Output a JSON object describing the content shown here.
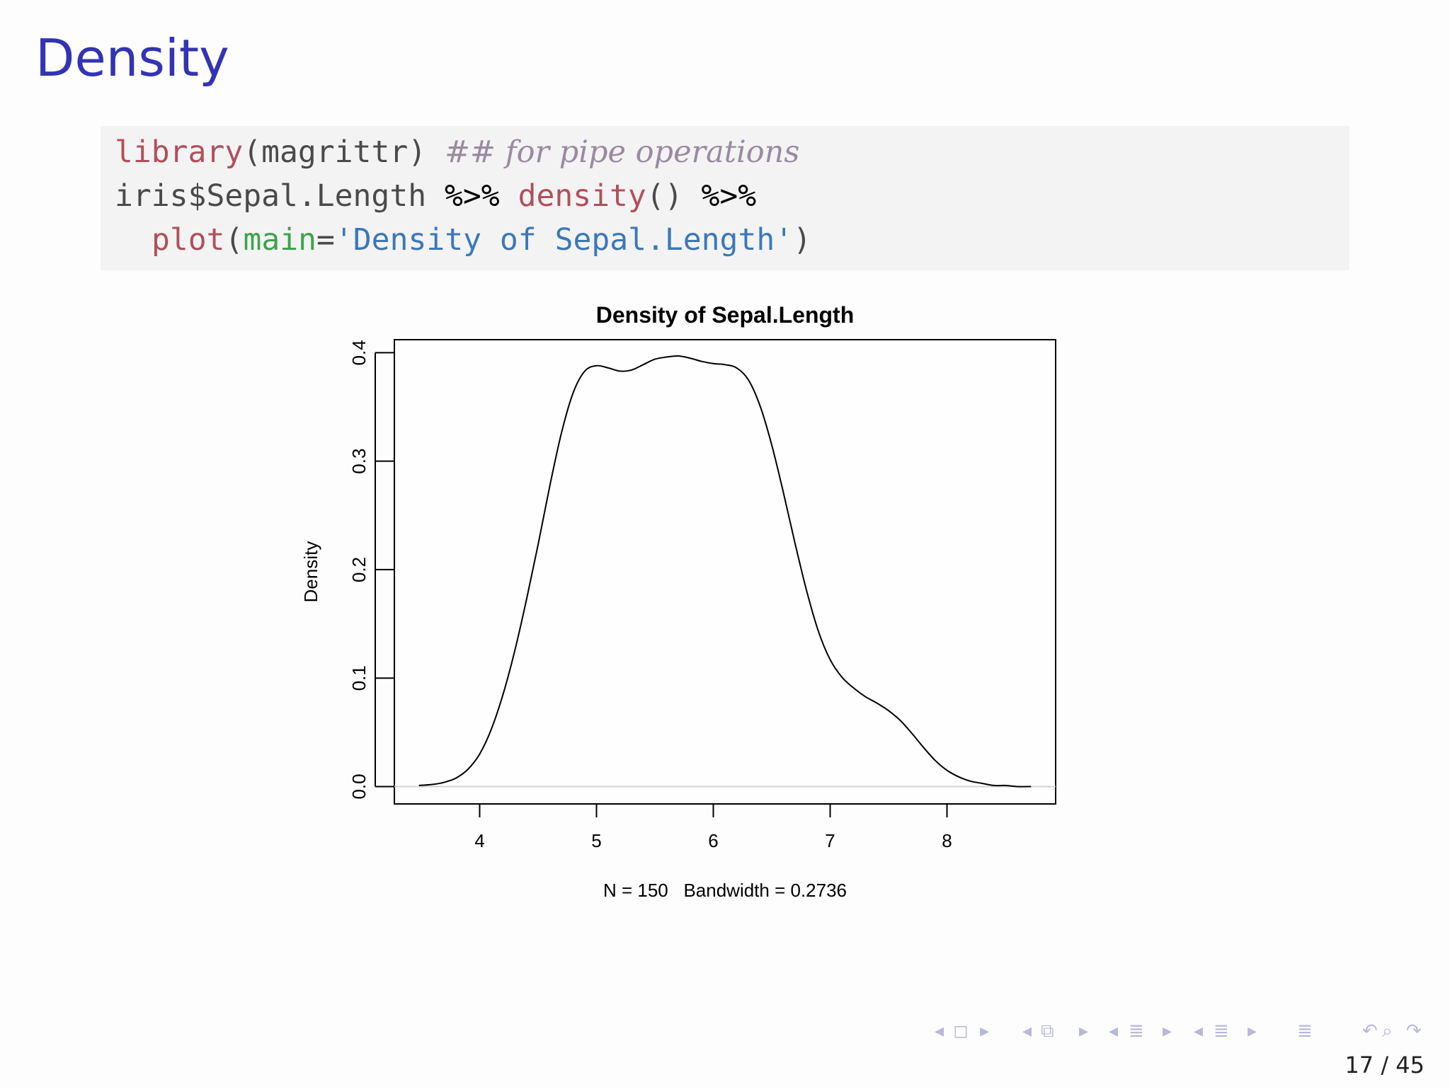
{
  "slide": {
    "title": "Density",
    "page_current": "17",
    "page_total": "45",
    "page_sep": "/"
  },
  "code": {
    "line1": {
      "fn": "library",
      "open": "(",
      "arg": "magrittr",
      "close": ")",
      "comment": "## for pipe operations"
    },
    "line2": {
      "obj": "iris$Sepal.Length",
      "pipe1": "%>%",
      "fn": "density",
      "parens": "()",
      "pipe2": "%>%"
    },
    "line3": {
      "fn": "plot",
      "open": "(",
      "arg": "main",
      "eq": "=",
      "str": "'Density of Sepal.Length'",
      "close": ")"
    }
  },
  "colors": {
    "title": "#3333b3",
    "code_fn": "#b0505a",
    "code_comment": "#9a8aa0",
    "code_arg": "#3fa34d",
    "code_string": "#3b78b8",
    "code_bg": "#f3f3f4"
  },
  "nav_icons": [
    "nav-left-arrow-icon",
    "frame-icon",
    "nav-right-arrow-icon",
    "nav-left-arrow-icon",
    "subsection-icon",
    "nav-right-arrow-icon",
    "nav-left-arrow-icon",
    "section-icon",
    "nav-right-arrow-icon",
    "nav-left-arrow-icon",
    "toc-icon",
    "nav-right-arrow-icon",
    "appendix-icon",
    "back-icon",
    "search-icon",
    "forward-icon"
  ],
  "chart_data": {
    "type": "line",
    "title": "Density of Sepal.Length",
    "xlabel": "N = 150   Bandwidth = 0.2736",
    "ylabel": "Density",
    "xlim": [
      3.27,
      8.93
    ],
    "ylim": [
      -0.016,
      0.412
    ],
    "xticks": [
      "4",
      "5",
      "6",
      "7",
      "8"
    ],
    "yticks": [
      "0.0",
      "0.1",
      "0.2",
      "0.3",
      "0.4"
    ],
    "grid": false,
    "baseline": 0,
    "series": [
      {
        "x": [
          3.48,
          3.6,
          3.7,
          3.8,
          3.9,
          4.0,
          4.1,
          4.2,
          4.3,
          4.4,
          4.5,
          4.6,
          4.7,
          4.8,
          4.9,
          5.0,
          5.1,
          5.2,
          5.3,
          5.4,
          5.5,
          5.6,
          5.7,
          5.8,
          5.9,
          6.0,
          6.1,
          6.2,
          6.3,
          6.4,
          6.5,
          6.6,
          6.7,
          6.8,
          6.9,
          7.0,
          7.1,
          7.2,
          7.3,
          7.4,
          7.5,
          7.6,
          7.7,
          7.8,
          7.9,
          8.0,
          8.1,
          8.2,
          8.3,
          8.4,
          8.5,
          8.6,
          8.72
        ],
        "y": [
          0.001,
          0.002,
          0.004,
          0.008,
          0.016,
          0.03,
          0.053,
          0.085,
          0.125,
          0.172,
          0.223,
          0.277,
          0.326,
          0.363,
          0.383,
          0.388,
          0.386,
          0.383,
          0.384,
          0.389,
          0.394,
          0.396,
          0.397,
          0.395,
          0.392,
          0.39,
          0.389,
          0.386,
          0.375,
          0.351,
          0.315,
          0.271,
          0.224,
          0.18,
          0.143,
          0.117,
          0.101,
          0.091,
          0.083,
          0.077,
          0.07,
          0.061,
          0.049,
          0.036,
          0.024,
          0.015,
          0.009,
          0.005,
          0.003,
          0.001,
          0.001,
          0.0,
          0.0
        ]
      }
    ]
  }
}
